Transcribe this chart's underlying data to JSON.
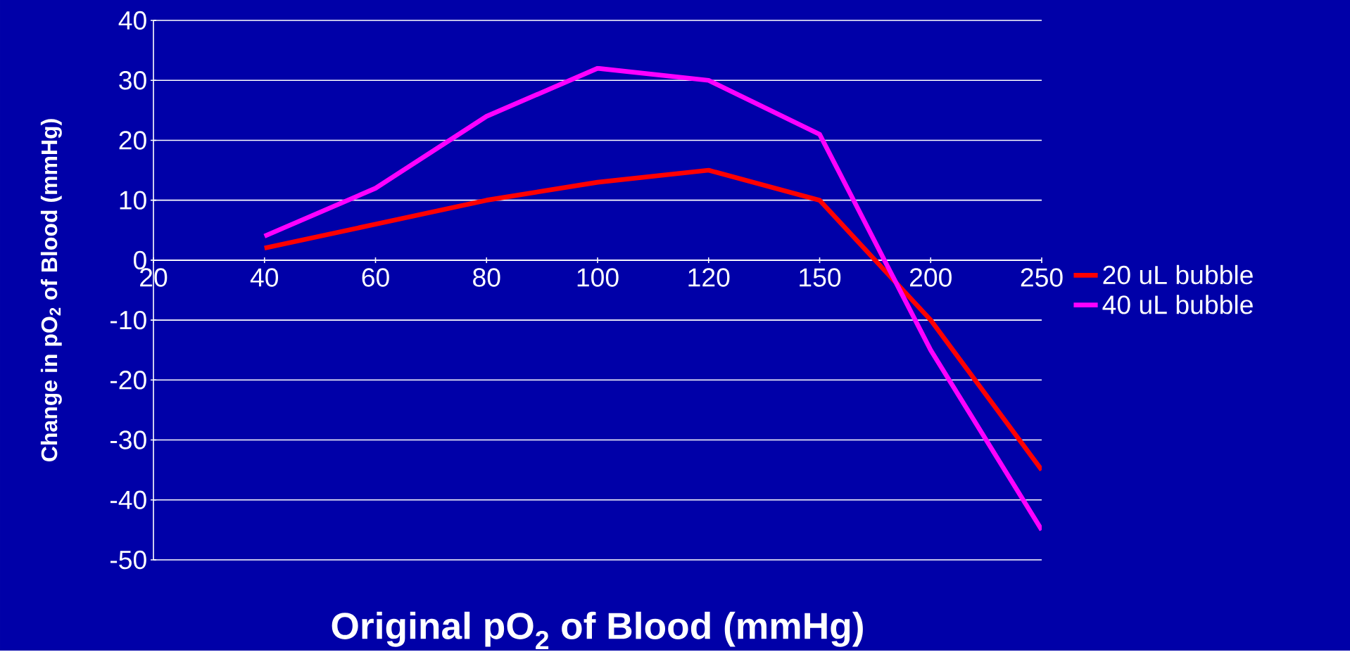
{
  "chart_data": {
    "type": "line",
    "xlabel": "Original pO$_{2}$ of Blood (mmHg)",
    "ylabel": "Change in pO$_{2}$ of Blood (mmHg)",
    "categories": [
      "20",
      "40",
      "60",
      "80",
      "100",
      "120",
      "150",
      "200",
      "250"
    ],
    "series": [
      {
        "name": "20 uL bubble",
        "color": "#ff0000",
        "values": [
          null,
          2,
          6,
          10,
          13,
          15,
          10,
          -10,
          -35
        ]
      },
      {
        "name": "40 uL bubble",
        "color": "#ff00ff",
        "values": [
          null,
          4,
          12,
          24,
          32,
          30,
          21,
          -15,
          -45
        ]
      }
    ],
    "ylim": [
      -50,
      40
    ],
    "yticks": [
      -50,
      -40,
      -30,
      -20,
      -10,
      0,
      10,
      20,
      30,
      40
    ],
    "grid": "y",
    "legend": "right",
    "marker": "none",
    "line_style": "solid"
  }
}
